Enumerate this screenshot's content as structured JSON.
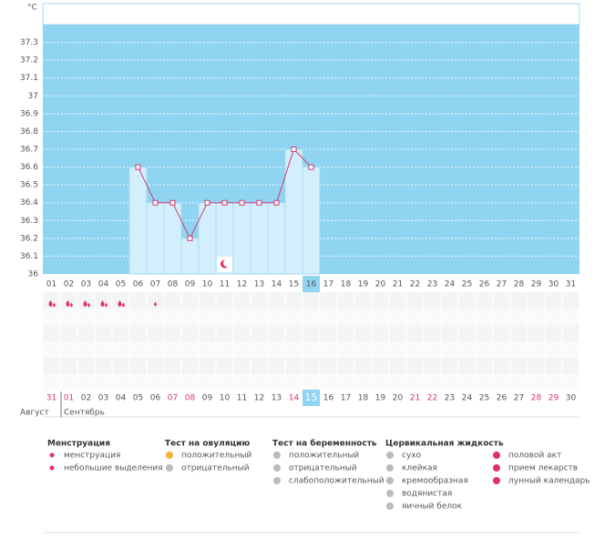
{
  "chart_data": {
    "type": "line",
    "y_unit": "°C",
    "categories": [
      "01",
      "02",
      "03",
      "04",
      "05",
      "06",
      "07",
      "08",
      "09",
      "10",
      "11",
      "12",
      "13",
      "14",
      "15",
      "16",
      "17",
      "18",
      "19",
      "20",
      "21",
      "22",
      "23",
      "24",
      "25",
      "26",
      "27",
      "28",
      "29",
      "30",
      "31"
    ],
    "values": [
      null,
      null,
      null,
      null,
      null,
      36.6,
      36.4,
      36.4,
      36.2,
      36.4,
      36.4,
      36.4,
      36.4,
      36.4,
      36.7,
      36.6,
      null,
      null,
      null,
      null,
      null,
      null,
      null,
      null,
      null,
      null,
      null,
      null,
      null,
      null,
      null
    ],
    "color": "#d4386e",
    "ylim": [
      36,
      37.4
    ],
    "yticks": [
      36,
      36.1,
      36.2,
      36.3,
      36.4,
      36.5,
      36.6,
      36.7,
      36.8,
      36.9,
      37,
      37.1,
      37.2,
      37.3
    ],
    "grid": true
  },
  "calendar": {
    "dates": [
      "31",
      "01",
      "02",
      "03",
      "04",
      "05",
      "06",
      "07",
      "08",
      "09",
      "10",
      "11",
      "12",
      "13",
      "14",
      "15",
      "16",
      "17",
      "18",
      "19",
      "20",
      "21",
      "22",
      "23",
      "24",
      "25",
      "26",
      "27",
      "28",
      "29",
      "30"
    ],
    "months": [
      "Август",
      "Сентябрь"
    ]
  },
  "legend": [
    {
      "title": "Менструация",
      "items": [
        "менструация",
        "небольшие выделения"
      ]
    },
    {
      "title": "Тест на овуляцию",
      "items": [
        "положительный",
        "отрицательный"
      ]
    },
    {
      "title": "Тест на беременность",
      "items": [
        "положительный",
        "отрицательный",
        "слабоположительный"
      ]
    },
    {
      "title": "Цервикальная жидкость",
      "items": [
        "сухо",
        "клейкая",
        "кремообразная",
        "водянистая",
        "яичный белок"
      ]
    },
    {
      "items": [
        "половой акт",
        "прием лекарств",
        "лунный календарь"
      ]
    }
  ]
}
